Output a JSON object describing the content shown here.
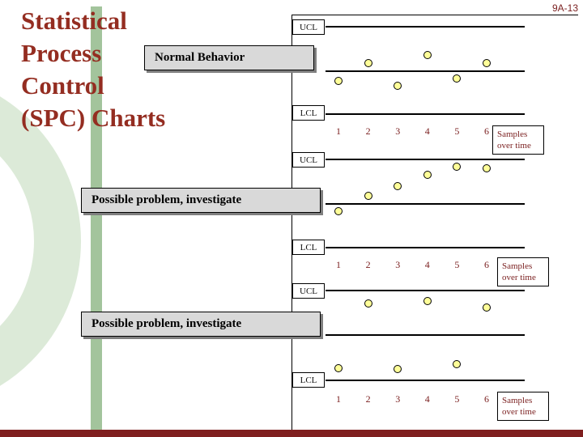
{
  "page": {
    "slide_number": "9A-13",
    "title_lines": [
      "Statistical",
      "Process",
      "Control",
      "(SPC) Charts"
    ]
  },
  "chart_data": [
    {
      "type": "scatter",
      "subtype": "control_chart",
      "annotation": "Normal Behavior",
      "ucl_label": "UCL",
      "lcl_label": "LCL",
      "x_tick_labels": [
        "1",
        "2",
        "3",
        "4",
        "5",
        "6"
      ],
      "samples_label_lines": [
        "Samples",
        "over time"
      ],
      "x": [
        1,
        2,
        3,
        4,
        5,
        6
      ],
      "values": [
        -0.22,
        0.18,
        -0.33,
        0.36,
        -0.16,
        0.18
      ],
      "value_scale": "centerline=0, UCL=+1, LCL=-1",
      "pattern": "random variation within control limits"
    },
    {
      "type": "scatter",
      "subtype": "control_chart",
      "annotation": "Possible problem, investigate",
      "ucl_label": "UCL",
      "lcl_label": "LCL",
      "x_tick_labels": [
        "1",
        "2",
        "3",
        "4",
        "5",
        "6"
      ],
      "samples_label_lines": [
        "Samples",
        "over time"
      ],
      "x": [
        1,
        2,
        3,
        4,
        5,
        6
      ],
      "values": [
        -0.18,
        0.16,
        0.38,
        0.64,
        0.84,
        0.8
      ],
      "value_scale": "centerline=0, UCL=+1, LCL=-1",
      "pattern": "upward trend toward UCL"
    },
    {
      "type": "scatter",
      "subtype": "control_chart",
      "annotation": "Possible problem, investigate",
      "ucl_label": "UCL",
      "lcl_label": "LCL",
      "x_tick_labels": [
        "1",
        "2",
        "3",
        "4",
        "5",
        "6"
      ],
      "samples_label_lines": [
        "Samples",
        "over time"
      ],
      "x": [
        1,
        2,
        3,
        4,
        5,
        6
      ],
      "values": [
        -0.75,
        0.71,
        -0.76,
        0.76,
        -0.65,
        0.62
      ],
      "value_scale": "centerline=0, UCL=+1, LCL=-1",
      "pattern": "alternating oscillation around centerline"
    }
  ],
  "colors": {
    "title_text": "#942d21",
    "axis_text": "#7a1f1f",
    "accent_green_bar": "#a3c49c",
    "decor_ring": "#dcead8",
    "bottom_bar": "#7f1f1f",
    "point_fill": "#ffff99",
    "callout_bg": "#d9d9d9",
    "callout_shadow": "#7f7f7f"
  }
}
